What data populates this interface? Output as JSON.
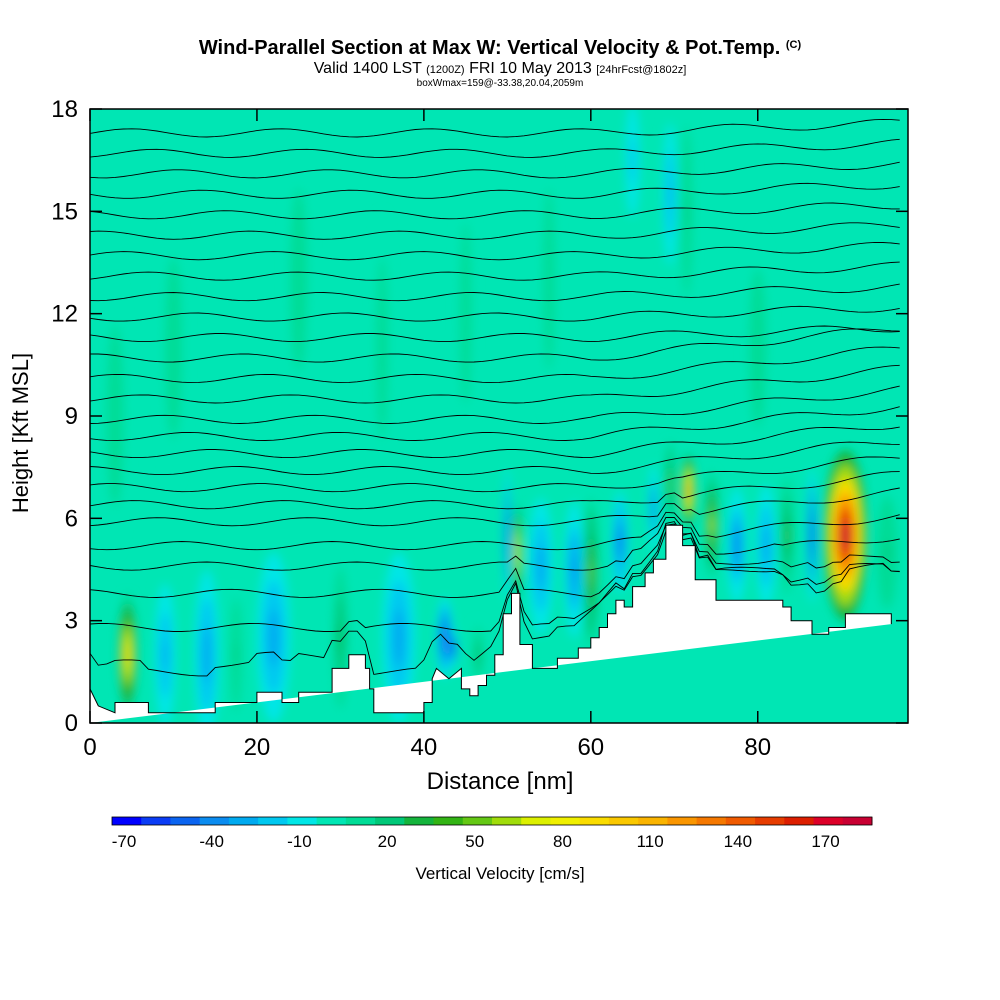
{
  "header": {
    "title": "Wind-Parallel Section at Max W: Vertical Velocity & Pot.Temp.",
    "copyright": "(C)",
    "subtitle_main": "Valid 1400 LST",
    "subtitle_zulu": "(1200Z)",
    "subtitle_date": "FRI 10 May 2013",
    "subtitle_fcst": "[24hrFcst@1802z]",
    "subtitle2": "boxWmax=159@-33.38,20.04,2059m"
  },
  "chart_data": {
    "type": "heatmap",
    "xlabel": "Distance [nm]",
    "ylabel": "Height [Kft MSL]",
    "xlim": [
      0,
      98
    ],
    "ylim": [
      0,
      18
    ],
    "xticks": [
      0,
      20,
      40,
      60,
      80
    ],
    "yticks": [
      0,
      3,
      6,
      9,
      12,
      15,
      18
    ],
    "colorbar": {
      "label": "Vertical Velocity [cm/s]",
      "min": -70,
      "max": 190,
      "step": 10,
      "tick_values": [
        -70,
        -40,
        -10,
        20,
        50,
        80,
        110,
        140,
        170
      ],
      "colors": [
        "#0000ff",
        "#0a3cf5",
        "#0a64f0",
        "#0a8cf0",
        "#00aaf0",
        "#00c8f0",
        "#00e6e6",
        "#00e6b4",
        "#00dc96",
        "#00c878",
        "#14b43c",
        "#32b414",
        "#64c814",
        "#a0dc0a",
        "#dcf000",
        "#f0f000",
        "#fadc00",
        "#fac800",
        "#fab400",
        "#fa9600",
        "#f57800",
        "#f05a00",
        "#e63c00",
        "#dc1e00",
        "#dc0028",
        "#c80032"
      ],
      "background": "#00e6b4"
    },
    "terrain": {
      "x": [
        0,
        1,
        3,
        3,
        7,
        7,
        15,
        15,
        20,
        20,
        23,
        23,
        25,
        25,
        29,
        29,
        31,
        31,
        33,
        33,
        33.5,
        33.5,
        33.5,
        34,
        34,
        40,
        40,
        41,
        41,
        41.5,
        43,
        44.5,
        44.5,
        45.5,
        45.5,
        46.5,
        46.5,
        47.5,
        47.5,
        48.5,
        48.5,
        49.5,
        49.5,
        50.5,
        50.5,
        51.5,
        51.5,
        53,
        53,
        56,
        56,
        58.5,
        58.5,
        60,
        60,
        61,
        61,
        62,
        62,
        63,
        63,
        64,
        64,
        65,
        65,
        66.5,
        66.5,
        67.5,
        67.5,
        69,
        69,
        71,
        71,
        72.5,
        72.5,
        75,
        75,
        76,
        76,
        83,
        83,
        84,
        84,
        86.5,
        86.5,
        88.5,
        88.5,
        90.5,
        90.5,
        96,
        96,
        98
      ],
      "y": [
        1,
        0.5,
        0.3,
        0.6,
        0.6,
        0.3,
        0.3,
        0.6,
        0.6,
        0.9,
        0.9,
        0.6,
        0.6,
        0.9,
        0.9,
        1.6,
        1.6,
        2.0,
        2.0,
        1.6,
        1.6,
        1.2,
        1.0,
        1.0,
        0.3,
        0.3,
        0.6,
        0.6,
        1.3,
        1.6,
        1.3,
        1.6,
        1.0,
        1.0,
        0.8,
        0.8,
        1.1,
        1.1,
        1.4,
        1.4,
        2.0,
        2.0,
        3.2,
        3.2,
        3.8,
        3.8,
        2.3,
        2.3,
        1.6,
        1.6,
        1.9,
        1.9,
        2.2,
        2.2,
        2.5,
        2.5,
        2.8,
        2.8,
        3.2,
        3.2,
        3.6,
        3.6,
        3.4,
        3.4,
        4.0,
        4.0,
        4.4,
        4.4,
        4.8,
        4.8,
        5.8,
        5.8,
        5.2,
        5.2,
        4.2,
        4.2,
        3.6,
        3.6,
        3.6,
        3.6,
        3.4,
        3.4,
        3.0,
        3.0,
        2.6,
        2.6,
        2.8,
        2.8,
        3.2,
        3.2,
        2.9
      ]
    },
    "blobs": [
      {
        "x": 4.5,
        "y": 2.0,
        "w": 90,
        "rx": 1.2,
        "ry": 1.8
      },
      {
        "x": 9,
        "y": 2.0,
        "w": -25,
        "rx": 1.5,
        "ry": 2.5
      },
      {
        "x": 14,
        "y": 2.0,
        "w": -30,
        "rx": 1.5,
        "ry": 2.5
      },
      {
        "x": 17.5,
        "y": 2.0,
        "w": 20,
        "rx": 0.8,
        "ry": 2.0
      },
      {
        "x": 22,
        "y": 2.5,
        "w": -30,
        "rx": 2.0,
        "ry": 2.5
      },
      {
        "x": 30,
        "y": 2.5,
        "w": 30,
        "rx": 1.0,
        "ry": 2.5
      },
      {
        "x": 37,
        "y": 2.5,
        "w": -30,
        "rx": 2.0,
        "ry": 2.5
      },
      {
        "x": 42.5,
        "y": 2.5,
        "w": -50,
        "rx": 1.0,
        "ry": 1.2
      },
      {
        "x": 43.5,
        "y": 2.2,
        "w": -65,
        "rx": 0.5,
        "ry": 0.6
      },
      {
        "x": 46.5,
        "y": 2.0,
        "w": 30,
        "rx": 0.7,
        "ry": 1.0
      },
      {
        "x": 50,
        "y": 5.5,
        "w": -50,
        "rx": 0.4,
        "ry": 2.0
      },
      {
        "x": 51.2,
        "y": 5.0,
        "w": 100,
        "rx": 0.5,
        "ry": 1.4
      },
      {
        "x": 54,
        "y": 4.6,
        "w": -30,
        "rx": 1.5,
        "ry": 2.0
      },
      {
        "x": 58,
        "y": 4.5,
        "w": -35,
        "rx": 1.2,
        "ry": 2.0
      },
      {
        "x": 60,
        "y": 4.4,
        "w": 50,
        "rx": 0.9,
        "ry": 2.2
      },
      {
        "x": 63.5,
        "y": 5.3,
        "w": -45,
        "rx": 1.0,
        "ry": 1.5
      },
      {
        "x": 67.5,
        "y": 6.3,
        "w": -40,
        "rx": 0.6,
        "ry": 1.3
      },
      {
        "x": 69.5,
        "y": 7.0,
        "w": 50,
        "rx": 0.5,
        "ry": 1.3
      },
      {
        "x": 71.7,
        "y": 6.8,
        "w": 120,
        "rx": 0.8,
        "ry": 1.1
      },
      {
        "x": 74.5,
        "y": 5.8,
        "w": 70,
        "rx": 0.8,
        "ry": 1.6
      },
      {
        "x": 77.5,
        "y": 5.2,
        "w": -40,
        "rx": 1.2,
        "ry": 1.7
      },
      {
        "x": 81,
        "y": 5.2,
        "w": -30,
        "rx": 1.2,
        "ry": 1.8
      },
      {
        "x": 83.5,
        "y": 5.5,
        "w": 40,
        "rx": 0.8,
        "ry": 1.7
      },
      {
        "x": 86.5,
        "y": 5.5,
        "w": -55,
        "rx": 0.6,
        "ry": 2.0
      },
      {
        "x": 90.5,
        "y": 5.5,
        "w": 190,
        "rx": 2.6,
        "ry": 2.5
      },
      {
        "x": 95.5,
        "y": 5.0,
        "w": 20,
        "rx": 1.5,
        "ry": 2.0
      },
      {
        "x": 69.5,
        "y": 15.5,
        "w": -25,
        "rx": 1.0,
        "ry": 2.5
      },
      {
        "x": 71.5,
        "y": 15.0,
        "w": 20,
        "rx": 0.8,
        "ry": 3.0
      },
      {
        "x": 65,
        "y": 16.5,
        "w": -15,
        "rx": 1.0,
        "ry": 2.0
      },
      {
        "x": 10,
        "y": 11.0,
        "w": 15,
        "rx": 1.5,
        "ry": 4.0
      },
      {
        "x": 25,
        "y": 13.0,
        "w": 15,
        "rx": 1.5,
        "ry": 4.0
      },
      {
        "x": 35,
        "y": 11.0,
        "w": 15,
        "rx": 1.0,
        "ry": 4.0
      },
      {
        "x": 45,
        "y": 12.0,
        "w": 15,
        "rx": 1.0,
        "ry": 4.0
      },
      {
        "x": 55,
        "y": 13.0,
        "w": 15,
        "rx": 1.0,
        "ry": 4.0
      },
      {
        "x": 80,
        "y": 11.0,
        "w": 15,
        "rx": 1.5,
        "ry": 3.5
      },
      {
        "x": 3,
        "y": 9.0,
        "w": 15,
        "rx": 1.5,
        "ry": 4.0
      }
    ],
    "isentropes": {
      "heights": [
        1.5,
        2.8,
        3.8,
        4.6,
        5.2,
        5.9,
        6.4,
        6.9,
        7.4,
        7.9,
        8.4,
        8.9,
        9.5,
        10.1,
        10.7,
        11.3,
        11.9,
        12.5,
        13.1,
        13.7,
        14.3,
        14.9,
        15.5,
        16.1,
        16.7,
        17.3
      ]
    }
  }
}
